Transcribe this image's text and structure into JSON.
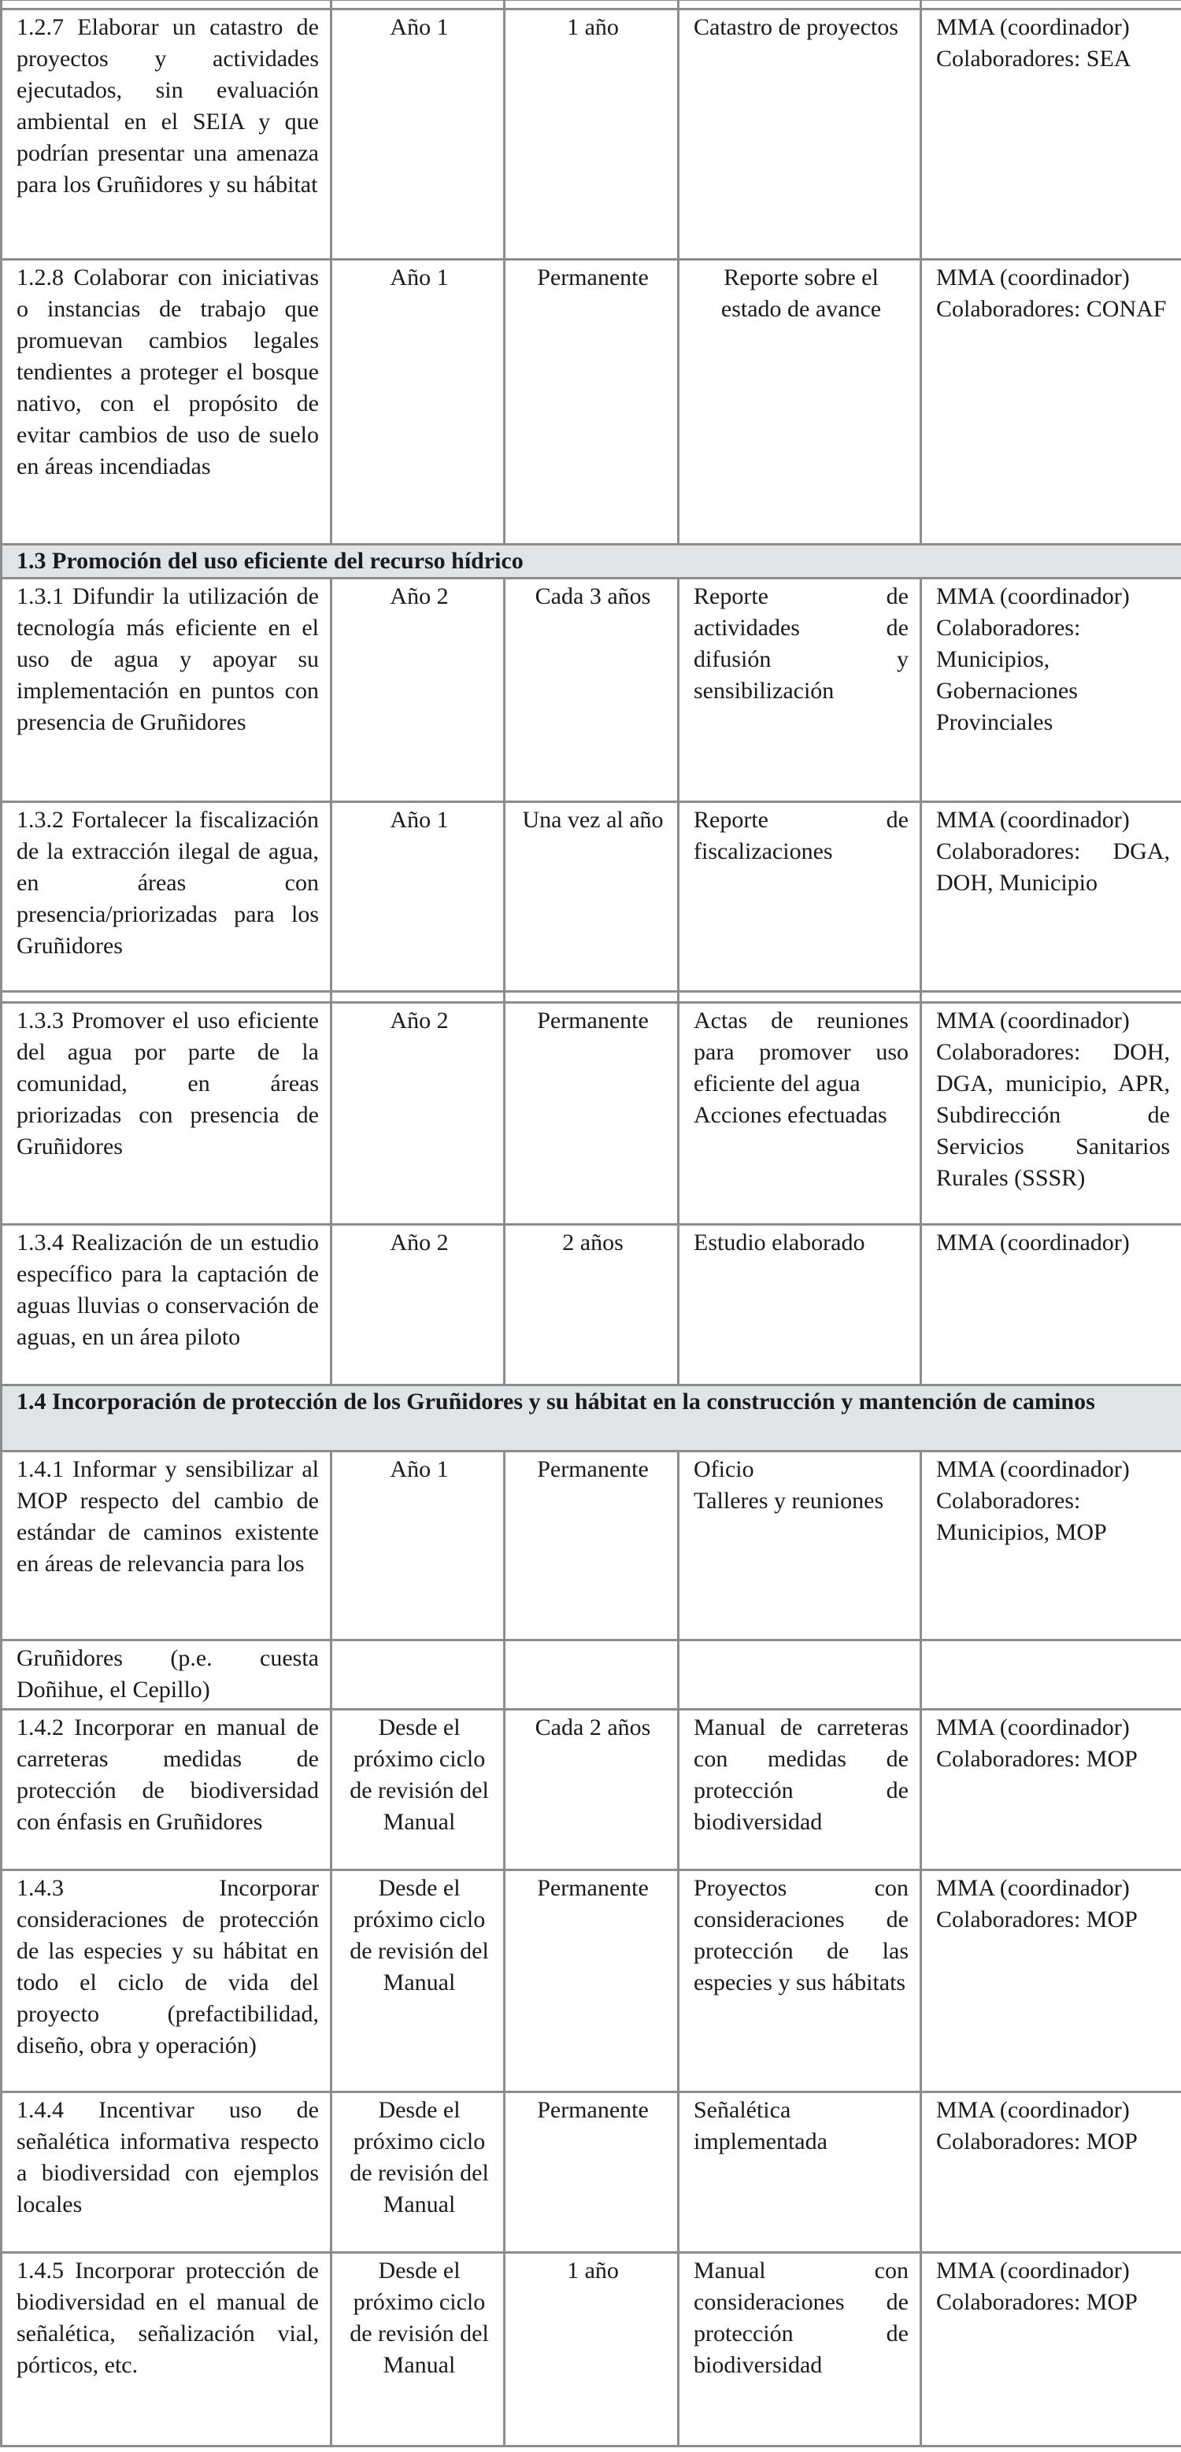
{
  "rows": [
    {
      "type": "stub",
      "cells": [
        "",
        "",
        "",
        "",
        ""
      ]
    },
    {
      "type": "row",
      "cells": [
        "1.2.7 Elaborar un catastro de proyectos y actividades ejecutados, sin evaluación ambiental en el SEIA y que podrían presentar una amenaza para los Gruñidores y su hábitat",
        "Año 1",
        "1 año",
        "Catastro de proyectos",
        "MMA (coordinador)\nColaboradores: SEA"
      ]
    },
    {
      "type": "row",
      "center4": true,
      "cells": [
        "1.2.8 Colaborar con iniciativas o instancias de trabajo que promuevan cambios legales tendientes a proteger el bosque nativo, con el propósito de evitar cambios de uso de suelo en áreas incendiadas",
        "Año 1",
        "Permanente",
        "Reporte sobre el estado de avance",
        "MMA (coordinador)\nColaboradores: CONAF"
      ]
    },
    {
      "type": "section",
      "title": "1.3 Promoción del uso eficiente del recurso hídrico"
    },
    {
      "type": "row",
      "cells": [
        "1.3.1 Difundir la utilización de tecnología más eficiente en el uso de agua y apoyar su implementación en puntos con presencia de Gruñidores",
        "Año 2",
        "Cada 3 años",
        "Reporte de actividades de difusión y sensibilización",
        "MMA (coordinador)\nColaboradores: Municipios, Gobernaciones Provinciales"
      ]
    },
    {
      "type": "row",
      "cells": [
        "1.3.2 Fortalecer la fiscalización de la extracción ilegal de agua, en áreas con presencia/priorizadas para los Gruñidores",
        "Año 1",
        "Una vez al año",
        "Reporte de fiscalizaciones",
        "MMA (coordinador)\nColaboradores: DGA, DOH, Municipio"
      ]
    },
    {
      "type": "stub",
      "cells": [
        "",
        "",
        "",
        "",
        ""
      ]
    },
    {
      "type": "row",
      "cells": [
        "1.3.3 Promover el uso eficiente del agua por parte de la comunidad, en áreas priorizadas con presencia de Gruñidores",
        "Año 2",
        "Permanente",
        "Actas de reuniones para promover uso eficiente del agua\nAcciones efectuadas",
        "MMA (coordinador)\nColaboradores: DOH, DGA, municipio, APR, Subdirección de Servicios Sanitarios Rurales (SSSR)"
      ]
    },
    {
      "type": "row",
      "cells": [
        "1.3.4 Realización de un estudio específico para la captación de aguas lluvias o conservación de aguas, en un área piloto",
        "Año 2",
        "2 años",
        "Estudio elaborado",
        "MMA (coordinador)"
      ]
    },
    {
      "type": "section",
      "title": "1.4 Incorporación de protección de los Gruñidores y su hábitat en la construcción y mantención de caminos"
    },
    {
      "type": "row",
      "cells": [
        "1.4.1 Informar y sensibilizar al MOP respecto del cambio de estándar de caminos existente en áreas de relevancia para los",
        "Año 1",
        "Permanente",
        "Oficio\nTalleres y reuniones",
        "MMA (coordinador)\nColaboradores: Municipios, MOP"
      ]
    },
    {
      "type": "row",
      "cells": [
        "Gruñidores (p.e. cuesta Doñihue, el Cepillo)",
        "",
        "",
        "",
        ""
      ]
    },
    {
      "type": "row",
      "cells": [
        "1.4.2 Incorporar en manual de carreteras medidas de protección de biodiversidad con énfasis en Gruñidores",
        "Desde el próximo ciclo de revisión del Manual",
        "Cada 2 años",
        "Manual de carreteras con medidas de protección de biodiversidad",
        "MMA (coordinador)\nColaboradores: MOP"
      ]
    },
    {
      "type": "row",
      "cells": [
        "1.4.3 Incorporar consideraciones de protección de las especies y su hábitat en todo el ciclo de vida del proyecto (prefactibilidad, diseño, obra y operación)",
        "Desde el próximo ciclo de revisión del Manual",
        "Permanente",
        "Proyectos con consideraciones de protección de las especies y sus hábitats",
        "MMA (coordinador)\nColaboradores: MOP"
      ]
    },
    {
      "type": "row",
      "cells": [
        "1.4.4 Incentivar uso de señalética informativa respecto a biodiversidad con ejemplos locales",
        "Desde el próximo ciclo de revisión del Manual",
        "Permanente",
        "Señalética implementada",
        "MMA (coordinador)\nColaboradores: MOP"
      ]
    },
    {
      "type": "row",
      "cells": [
        "1.4.5 Incorporar protección de biodiversidad en el manual de señalética, señalización vial, pórticos, etc.",
        "Desde el próximo ciclo de revisión del Manual",
        "1 año",
        "Manual con consideraciones de protección de biodiversidad",
        "MMA (coordinador)\nColaboradores: MOP"
      ]
    }
  ]
}
